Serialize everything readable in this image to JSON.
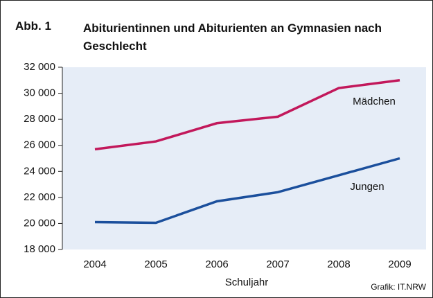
{
  "figure_label": "Abb. 1",
  "chart_data": {
    "type": "line",
    "title": "Abiturientinnen und Abiturienten an Gymnasien nach Geschlecht",
    "x_label": "Schuljahr",
    "source": "Grafik: IT.NRW",
    "categories": [
      "2004",
      "2005",
      "2006",
      "2007",
      "2008",
      "2009"
    ],
    "series": [
      {
        "name": "Mädchen",
        "color": "#c2185b",
        "values": [
          25700,
          26300,
          27700,
          28200,
          30400,
          31000
        ]
      },
      {
        "name": "Jungen",
        "color": "#1b4f9c",
        "values": [
          20100,
          20050,
          21700,
          22400,
          23700,
          25000
        ]
      }
    ],
    "ylim": [
      18000,
      32000
    ],
    "yticks": [
      {
        "value": 18000,
        "label": "18 000"
      },
      {
        "value": 20000,
        "label": "20 000"
      },
      {
        "value": 22000,
        "label": "22 000"
      },
      {
        "value": 24000,
        "label": "24 000"
      },
      {
        "value": 26000,
        "label": "26 000"
      },
      {
        "value": 28000,
        "label": "28 000"
      },
      {
        "value": 30000,
        "label": "30 000"
      },
      {
        "value": 32000,
        "label": "32 000"
      }
    ],
    "background": "#e6edf7"
  }
}
